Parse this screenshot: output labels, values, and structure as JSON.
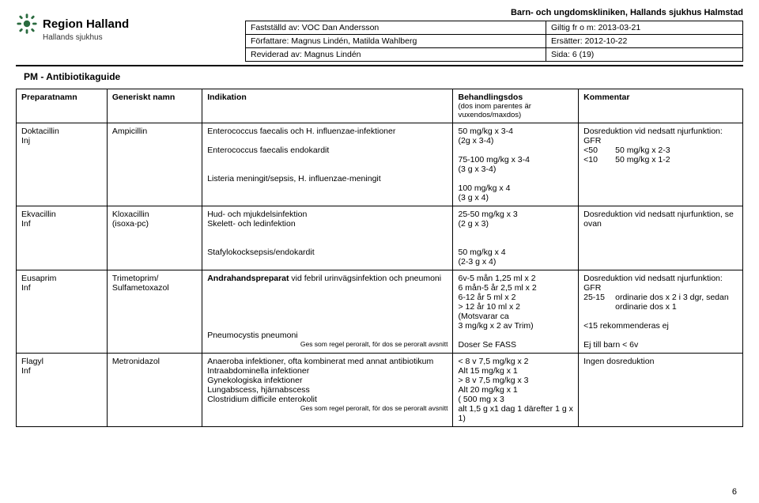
{
  "header": {
    "clinic": "Barn- och ungdomskliniken, Hallands sjukhus Halmstad",
    "logo_region": "Region Halland",
    "logo_sub": "Hallands sjukhus",
    "meta": {
      "faststalld": "Fastställd av: VOC Dan Andersson",
      "giltig": "Giltig fr o m: 2013-03-21",
      "forfattare": "Författare: Magnus Lindén, Matilda Wahlberg",
      "ersatter": "Ersätter: 2012-10-22",
      "reviderad": "Reviderad av: Magnus Lindén",
      "sida": "Sida: 6 (19)"
    },
    "pm_title": "PM - Antibiotikaguide"
  },
  "table": {
    "headers": {
      "preparat": "Preparatnamn",
      "generiskt": "Generiskt namn",
      "indikation": "Indikation",
      "behandling": "Behandlingsdos",
      "behandling_sub": "(dos inom parentes är vuxendos/maxdos)",
      "kommentar": "Kommentar"
    },
    "rows": [
      {
        "prep": "Doktacillin\nInj",
        "gen": "Ampicillin",
        "ind": "Enterococcus faecalis och H. influenzae-infektioner\n\nEnterococcus faecalis endokardit\n\n\nListeria meningit/sepsis, H. influenzae-meningit",
        "dos": "50 mg/kg  x 3-4\n(2g x 3-4)\n\n75-100 mg/kg x 3-4\n(3 g x 3-4)\n\n100 mg/kg x 4\n(3 g x 4)",
        "kom_intro": "Dosreduktion vid nedsatt njurfunktion: GFR",
        "kom_rows": [
          [
            "<50",
            "50 mg/kg x 2-3"
          ],
          [
            "<10",
            "50 mg/kg x 1-2"
          ]
        ]
      },
      {
        "prep": "Ekvacillin\nInf",
        "gen": "Kloxacillin\n(isoxa-pc)",
        "ind": "Hud- och mjukdelsinfektion\nSkelett- och ledinfektion\n\n\nStafylokocksepsis/endokardit",
        "dos": "25-50 mg/kg x 3\n(2 g x 3)\n\n\n50 mg/kg x 4\n(2-3 g x 4)",
        "kom": "Dosreduktion vid nedsatt njurfunktion, se ovan"
      },
      {
        "prep": "Eusaprim\nInf",
        "gen": "Trimetoprim/\nSulfametoxazol",
        "ind_html": "<b>Andrahandspreparat</b> vid febril urinvägsinfektion och pneumoni",
        "ind2": "Pneumocystis pneumoni",
        "ind2_note": "Ges som regel peroralt, för dos se peroralt avsnitt",
        "dos": "6v-5 mån 1,25 ml  x 2\n6 mån-5 år 2,5 ml x 2\n6-12 år 5 ml x 2\n> 12 år 10 ml x 2\n(Motsvarar ca\n3 mg/kg x 2 av Trim)\n\nDoser Se FASS",
        "kom_intro": "Dosreduktion vid nedsatt njurfunktion: GFR",
        "kom_rows": [
          [
            "25-15",
            "ordinarie dos x 2 i 3 dgr, sedan ordinarie dos x 1"
          ]
        ],
        "kom_extra": "\n<15 rekommenderas ej\n\nEj till barn < 6v"
      },
      {
        "prep": "Flagyl\nInf",
        "gen": "Metronidazol",
        "ind": "Anaeroba infektioner, ofta kombinerat med annat antibiotikum\nIntraabdominella infektioner\nGynekologiska infektioner\nLungabscess, hjärnabscess\nClostridium difficile enterokolit",
        "ind_note": "Ges som regel peroralt, för dos se peroralt avsnitt",
        "dos": "< 8 v  7,5 mg/kg x 2\nAlt 15 mg/kg x 1\n> 8 v  7,5 mg/kg x 3\nAlt 20 mg/kg x 1\n( 500 mg x 3\nalt 1,5 g x1 dag 1 därefter 1 g x 1)",
        "kom": "Ingen dosreduktion"
      }
    ]
  },
  "page_number": "6"
}
